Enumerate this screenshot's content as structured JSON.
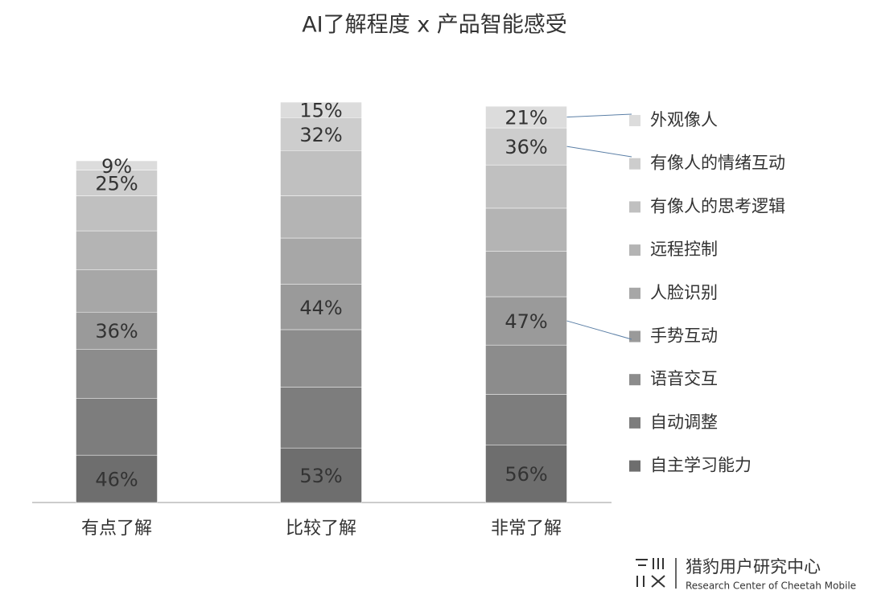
{
  "chart_data": {
    "type": "stacked_bar",
    "title": "AI了解程度 x 产品智能感受",
    "categories": [
      "有点了解",
      "比较了解",
      "非常了解"
    ],
    "series": [
      {
        "name": "自主学习能力",
        "color": "#6e6e6e",
        "values": [
          46,
          53,
          56
        ],
        "value_labels": [
          "46%",
          "53%",
          "56%"
        ]
      },
      {
        "name": "自动调整",
        "color": "#7d7d7d",
        "values": [
          55,
          59,
          49
        ],
        "value_labels": [
          null,
          null,
          null
        ]
      },
      {
        "name": "语音交互",
        "color": "#8c8c8c",
        "values": [
          48,
          56,
          48
        ],
        "value_labels": [
          null,
          null,
          null
        ]
      },
      {
        "name": "手势互动",
        "color": "#9a9a9a",
        "values": [
          36,
          44,
          47
        ],
        "value_labels": [
          "36%",
          "44%",
          "47%"
        ]
      },
      {
        "name": "人脸识别",
        "color": "#a7a7a7",
        "values": [
          41,
          45,
          44
        ],
        "value_labels": [
          null,
          null,
          null
        ]
      },
      {
        "name": "远程控制",
        "color": "#b4b4b4",
        "values": [
          38,
          41,
          42
        ],
        "value_labels": [
          null,
          null,
          null
        ]
      },
      {
        "name": "有像人的思考逻辑",
        "color": "#c0c0c0",
        "values": [
          34,
          44,
          42
        ],
        "value_labels": [
          null,
          null,
          null
        ]
      },
      {
        "name": "有像人的情绪互动",
        "color": "#cdcdcd",
        "values": [
          25,
          32,
          36
        ],
        "value_labels": [
          "25%",
          "32%",
          "36%"
        ]
      },
      {
        "name": "外观像人",
        "color": "#dcdcdc",
        "values": [
          9,
          15,
          21
        ],
        "value_labels": [
          "9%",
          "15%",
          "21%"
        ]
      }
    ],
    "legend": "right"
  },
  "footer": {
    "brand": "猎豹用户研究中心",
    "brand_en": "Research Center of Cheetah Mobile"
  }
}
